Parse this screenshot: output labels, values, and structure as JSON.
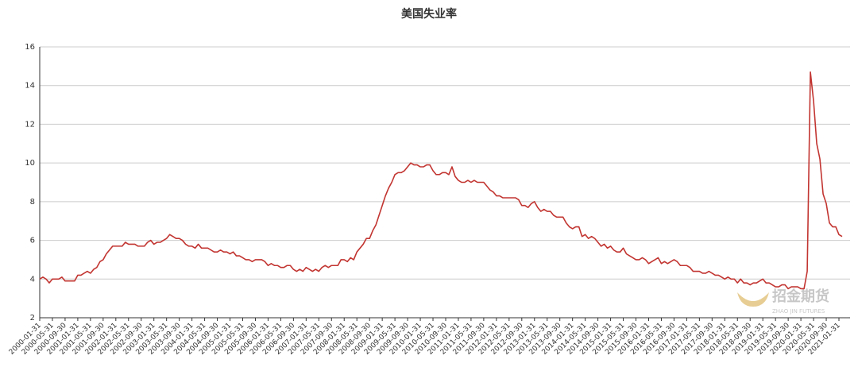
{
  "chart_data": {
    "type": "line",
    "title": "美国失业率",
    "watermark": "招金期货",
    "watermark_sub": "ZHAO JIN FUTURES",
    "categories": [
      "2000-01-31",
      null,
      null,
      null,
      "2000-05-31",
      null,
      null,
      null,
      "2000-09-30",
      null,
      null,
      null,
      "2001-01-31",
      null,
      null,
      null,
      "2001-05-31",
      null,
      null,
      null,
      "2001-09-30",
      null,
      null,
      null,
      "2002-01-31",
      null,
      null,
      null,
      "2002-05-31",
      null,
      null,
      null,
      "2002-09-30",
      null,
      null,
      null,
      "2003-01-31",
      null,
      null,
      null,
      "2003-05-31",
      null,
      null,
      null,
      "2003-09-30",
      null,
      null,
      null,
      "2004-01-31",
      null,
      null,
      null,
      "2004-05-31",
      null,
      null,
      null,
      "2004-09-30",
      null,
      null,
      null,
      "2005-01-31",
      null,
      null,
      null,
      "2005-05-31",
      null,
      null,
      null,
      "2005-09-30",
      null,
      null,
      null,
      "2006-01-31",
      null,
      null,
      null,
      "2006-05-31",
      null,
      null,
      null,
      "2006-09-30",
      null,
      null,
      null,
      "2007-01-31",
      null,
      null,
      null,
      "2007-05-31",
      null,
      null,
      null,
      "2007-09-30",
      null,
      null,
      null,
      "2008-01-31",
      null,
      null,
      null,
      "2008-05-31",
      null,
      null,
      null,
      "2008-09-30",
      null,
      null,
      null,
      "2009-01-31",
      null,
      null,
      null,
      "2009-05-31",
      null,
      null,
      null,
      "2009-09-30",
      null,
      null,
      null,
      "2010-01-31",
      null,
      null,
      null,
      "2010-05-31",
      null,
      null,
      null,
      "2010-09-30",
      null,
      null,
      null,
      "2011-01-31",
      null,
      null,
      null,
      "2011-05-31",
      null,
      null,
      null,
      "2011-09-30",
      null,
      null,
      null,
      "2012-01-31",
      null,
      null,
      null,
      "2012-05-31",
      null,
      null,
      null,
      "2012-09-30",
      null,
      null,
      null,
      "2013-01-31",
      null,
      null,
      null,
      "2013-05-31",
      null,
      null,
      null,
      "2013-09-30",
      null,
      null,
      null,
      "2014-01-31",
      null,
      null,
      null,
      "2014-05-31",
      null,
      null,
      null,
      "2014-09-30",
      null,
      null,
      null,
      "2015-01-31",
      null,
      null,
      null,
      "2015-05-31",
      null,
      null,
      null,
      "2015-09-30",
      null,
      null,
      null,
      "2016-01-31",
      null,
      null,
      null,
      "2016-05-31",
      null,
      null,
      null,
      "2016-09-30",
      null,
      null,
      null,
      "2017-01-31",
      null,
      null,
      null,
      "2017-05-31",
      null,
      null,
      null,
      "2017-09-30",
      null,
      null,
      null,
      "2018-01-31",
      null,
      null,
      null,
      "2018-05-31",
      null,
      null,
      null,
      "2018-09-30",
      null,
      null,
      null,
      "2019-01-31",
      null,
      null,
      null,
      "2019-05-31",
      null,
      null,
      null,
      "2019-09-30",
      null,
      null,
      null,
      "2020-01-31",
      null,
      null,
      null,
      "2020-05-31",
      null,
      null,
      null,
      "2020-09-30",
      null,
      null,
      null,
      "2021-01-31",
      null
    ],
    "values": [
      4.0,
      4.1,
      4.0,
      3.8,
      4.0,
      4.0,
      4.0,
      4.1,
      3.9,
      3.9,
      3.9,
      3.9,
      4.2,
      4.2,
      4.3,
      4.4,
      4.3,
      4.5,
      4.6,
      4.9,
      5.0,
      5.3,
      5.5,
      5.7,
      5.7,
      5.7,
      5.7,
      5.9,
      5.8,
      5.8,
      5.8,
      5.7,
      5.7,
      5.7,
      5.9,
      6.0,
      5.8,
      5.9,
      5.9,
      6.0,
      6.1,
      6.3,
      6.2,
      6.1,
      6.1,
      6.0,
      5.8,
      5.7,
      5.7,
      5.6,
      5.8,
      5.6,
      5.6,
      5.6,
      5.5,
      5.4,
      5.4,
      5.5,
      5.4,
      5.4,
      5.3,
      5.4,
      5.2,
      5.2,
      5.1,
      5.0,
      5.0,
      4.9,
      5.0,
      5.0,
      5.0,
      4.9,
      4.7,
      4.8,
      4.7,
      4.7,
      4.6,
      4.6,
      4.7,
      4.7,
      4.5,
      4.4,
      4.5,
      4.4,
      4.6,
      4.5,
      4.4,
      4.5,
      4.4,
      4.6,
      4.7,
      4.6,
      4.7,
      4.7,
      4.7,
      5.0,
      5.0,
      4.9,
      5.1,
      5.0,
      5.4,
      5.6,
      5.8,
      6.1,
      6.1,
      6.5,
      6.8,
      7.3,
      7.8,
      8.3,
      8.7,
      9.0,
      9.4,
      9.5,
      9.5,
      9.6,
      9.8,
      10.0,
      9.9,
      9.9,
      9.8,
      9.8,
      9.9,
      9.9,
      9.6,
      9.4,
      9.4,
      9.5,
      9.5,
      9.4,
      9.8,
      9.3,
      9.1,
      9.0,
      9.0,
      9.1,
      9.0,
      9.1,
      9.0,
      9.0,
      9.0,
      8.8,
      8.6,
      8.5,
      8.3,
      8.3,
      8.2,
      8.2,
      8.2,
      8.2,
      8.2,
      8.1,
      7.8,
      7.8,
      7.7,
      7.9,
      8.0,
      7.7,
      7.5,
      7.6,
      7.5,
      7.5,
      7.3,
      7.2,
      7.2,
      7.2,
      6.9,
      6.7,
      6.6,
      6.7,
      6.7,
      6.2,
      6.3,
      6.1,
      6.2,
      6.1,
      5.9,
      5.7,
      5.8,
      5.6,
      5.7,
      5.5,
      5.4,
      5.4,
      5.6,
      5.3,
      5.2,
      5.1,
      5.0,
      5.0,
      5.1,
      5.0,
      4.8,
      4.9,
      5.0,
      5.1,
      4.8,
      4.9,
      4.8,
      4.9,
      5.0,
      4.9,
      4.7,
      4.7,
      4.7,
      4.6,
      4.4,
      4.4,
      4.4,
      4.3,
      4.3,
      4.4,
      4.3,
      4.2,
      4.2,
      4.1,
      4.0,
      4.1,
      4.0,
      4.0,
      3.8,
      4.0,
      3.8,
      3.8,
      3.7,
      3.8,
      3.8,
      3.9,
      4.0,
      3.8,
      3.8,
      3.7,
      3.6,
      3.6,
      3.7,
      3.7,
      3.5,
      3.6,
      3.6,
      3.6,
      3.5,
      3.5,
      4.4,
      14.7,
      13.2,
      11.0,
      10.2,
      8.4,
      7.9,
      6.9,
      6.7,
      6.7,
      6.3,
      6.2
    ],
    "color": "#c23531",
    "ylim": [
      2,
      16
    ],
    "yticks": [
      2,
      4,
      6,
      8,
      10,
      12,
      14,
      16
    ],
    "grid": true
  }
}
